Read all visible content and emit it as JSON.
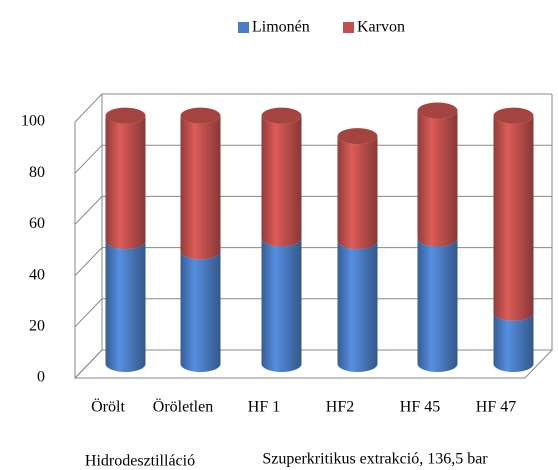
{
  "chart_data": {
    "type": "bar3d_stacked",
    "categories": [
      "Örölt",
      "Öröletlen",
      "HF 1",
      "HF2",
      "HF 45",
      "HF 47"
    ],
    "group_labels": [
      "Hidrodesztilláció",
      "Szuperkritikus extrakció, 136,5 bar"
    ],
    "series": [
      {
        "name": "Limonén",
        "color": "#4a7cc4",
        "values": [
          48,
          44,
          49,
          48,
          49,
          20
        ]
      },
      {
        "name": "Karvon",
        "color": "#c0504d",
        "values": [
          49,
          53,
          48,
          41,
          50,
          77
        ]
      }
    ],
    "ylim": [
      0,
      100
    ],
    "yticks": [
      0,
      20,
      40,
      60,
      80,
      100
    ],
    "grid": true,
    "legend": "top"
  }
}
